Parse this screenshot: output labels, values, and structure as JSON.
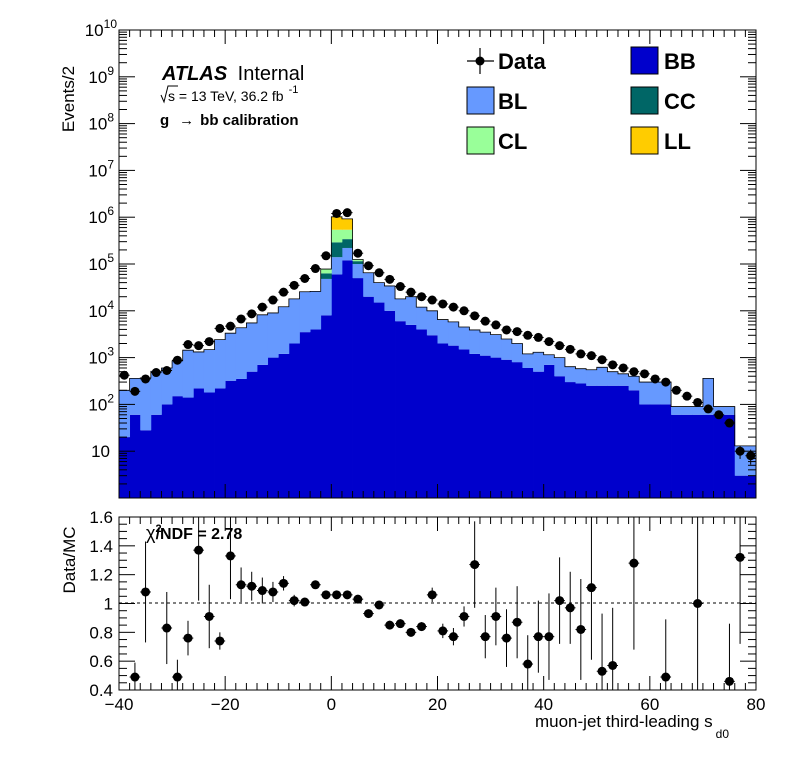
{
  "chart_data": [
    {
      "type": "stacked-histogram",
      "panel": "main",
      "ylabel": "Events/2",
      "yscale": "log",
      "ylim": [
        1,
        10000000000
      ],
      "xlim": [
        -40,
        80
      ],
      "bin_edges_start": -40,
      "bin_width": 2,
      "y_tick_labels": [
        "10",
        "10",
        "10",
        "10",
        "10",
        "10",
        "10",
        "10",
        "10",
        "10"
      ],
      "y_tick_exponents": [
        "",
        "2",
        "3",
        "4",
        "5",
        "6",
        "7",
        "8",
        "9",
        "10"
      ],
      "y_tick_values": [
        10,
        100,
        1000,
        10000,
        100000,
        1000000,
        10000000,
        100000000,
        1000000000,
        10000000000
      ],
      "legend_position": "top-right",
      "series": [
        {
          "name": "BB",
          "color": "#0000cc",
          "values": [
            20,
            60,
            28,
            60,
            100,
            150,
            140,
            220,
            180,
            220,
            320,
            350,
            500,
            700,
            1000,
            1200,
            2000,
            3500,
            4000,
            8000,
            60000,
            120000,
            50000,
            20000,
            15000,
            10000,
            6000,
            5000,
            4000,
            3000,
            2000,
            1800,
            1500,
            1200,
            1100,
            1000,
            900,
            800,
            600,
            500,
            700,
            400,
            300,
            280,
            250,
            250,
            250,
            250,
            200,
            100,
            100,
            100,
            60,
            60,
            60,
            60,
            60,
            60,
            3,
            3
          ]
        },
        {
          "name": "BL",
          "color": "#6699ff",
          "values": [
            180,
            300,
            340,
            450,
            500,
            700,
            1300,
            1100,
            1300,
            2200,
            3000,
            4000,
            5000,
            7500,
            8000,
            11000,
            16000,
            22000,
            22000,
            40000,
            80000,
            100000,
            50000,
            45000,
            25000,
            24000,
            12000,
            15000,
            8000,
            7000,
            4500,
            4000,
            3000,
            2700,
            2400,
            2100,
            1600,
            1200,
            600,
            800,
            450,
            600,
            340,
            300,
            300,
            370,
            250,
            200,
            200,
            200,
            200,
            200,
            30,
            30,
            30,
            300,
            30,
            30,
            10,
            10
          ]
        },
        {
          "name": "CC",
          "color": "#006666",
          "values": [
            0,
            0,
            0,
            0,
            0,
            0,
            0,
            0,
            0,
            0,
            0,
            0,
            0,
            0,
            0,
            0,
            0,
            0,
            0,
            15000,
            150000,
            120000,
            15000,
            0,
            0,
            0,
            0,
            0,
            0,
            0,
            0,
            0,
            0,
            0,
            0,
            0,
            0,
            0,
            0,
            0,
            0,
            0,
            0,
            0,
            0,
            0,
            0,
            0,
            0,
            0,
            0,
            0,
            0,
            0,
            0,
            0,
            0,
            0,
            0,
            0
          ]
        },
        {
          "name": "CL",
          "color": "#99ff99",
          "values": [
            0,
            0,
            0,
            0,
            0,
            0,
            0,
            0,
            0,
            0,
            0,
            0,
            0,
            0,
            0,
            0,
            0,
            0,
            0,
            15000,
            250000,
            200000,
            10000,
            0,
            0,
            0,
            0,
            0,
            0,
            0,
            0,
            0,
            0,
            0,
            0,
            0,
            0,
            0,
            0,
            0,
            0,
            0,
            0,
            0,
            0,
            0,
            0,
            0,
            0,
            0,
            0,
            0,
            0,
            0,
            0,
            0,
            0,
            0,
            0,
            0
          ]
        },
        {
          "name": "LL",
          "color": "#ffcc00",
          "values": [
            0,
            0,
            0,
            0,
            0,
            0,
            0,
            0,
            0,
            0,
            0,
            0,
            0,
            0,
            0,
            0,
            0,
            0,
            0,
            0,
            480000,
            380000,
            0,
            0,
            0,
            0,
            0,
            0,
            0,
            0,
            0,
            0,
            0,
            0,
            0,
            0,
            0,
            0,
            0,
            0,
            0,
            0,
            0,
            0,
            0,
            0,
            0,
            0,
            0,
            0,
            0,
            0,
            0,
            0,
            0,
            0,
            0,
            0,
            0,
            0
          ]
        }
      ],
      "data": {
        "name": "Data",
        "color": "#000000",
        "values": [
          420,
          190,
          350,
          480,
          530,
          880,
          1900,
          1800,
          2200,
          4200,
          4700,
          6700,
          8600,
          12000,
          17000,
          25000,
          35000,
          49000,
          80000,
          150000,
          1200000,
          1250000,
          170000,
          92000,
          65000,
          47000,
          33000,
          25000,
          20000,
          17000,
          14000,
          12000,
          10000,
          7800,
          6000,
          5000,
          3900,
          3600,
          3000,
          2700,
          2200,
          1800,
          1500,
          1200,
          1100,
          900,
          700,
          600,
          500,
          450,
          350,
          300,
          200,
          150,
          110,
          80,
          60,
          40,
          10,
          8
        ]
      },
      "annotations": {
        "atlas_label": "ATLAS",
        "atlas_suffix": "Internal",
        "sqrt_s": "s",
        "energy_text": " = 13 TeV, 36.2 fb",
        "lumi_exponent": "-1",
        "calibration_g": "g",
        "calibration_arrow": "→",
        "calibration_text": "bb calibration"
      },
      "legend_order": [
        "Data",
        "BB",
        "BL",
        "CC",
        "CL",
        "LL"
      ]
    },
    {
      "type": "scatter-errorbar",
      "panel": "ratio",
      "ylabel": "Data/MC",
      "xlabel": "muon-jet third-leading s",
      "xlabel_subscript": "d0",
      "xlim": [
        -40,
        80
      ],
      "ylim": [
        0.4,
        1.6
      ],
      "reference_line": 1,
      "x_ticks": [
        -40,
        -20,
        0,
        20,
        40,
        60,
        80
      ],
      "x_tick_labels": [
        "−40",
        "−20",
        "0",
        "20",
        "40",
        "60",
        "80"
      ],
      "y_ticks": [
        0.4,
        0.6,
        0.8,
        1,
        1.2,
        1.4,
        1.6
      ],
      "y_tick_labels": [
        "0.4",
        "0.6",
        "0.8",
        "1",
        "1.2",
        "1.4",
        "1.6"
      ],
      "chi2_symbol": "χ",
      "chi2_exponent": "2",
      "chi2_text": "/NDF = 2.78",
      "points": [
        {
          "x": -37,
          "y": 0.49,
          "err": 0.1
        },
        {
          "x": -35,
          "y": 1.08,
          "err": 0.35
        },
        {
          "x": -31,
          "y": 0.83,
          "err": 0.25
        },
        {
          "x": -29,
          "y": 0.49,
          "err": 0.12
        },
        {
          "x": -27,
          "y": 0.76,
          "err": 0.12
        },
        {
          "x": -25,
          "y": 1.37,
          "err": 0.35
        },
        {
          "x": -23,
          "y": 0.91,
          "err": 0.22
        },
        {
          "x": -21,
          "y": 0.74,
          "err": 0.06
        },
        {
          "x": -19,
          "y": 1.33,
          "err": 0.3
        },
        {
          "x": -17,
          "y": 1.13,
          "err": 0.12
        },
        {
          "x": -15,
          "y": 1.12,
          "err": 0.1
        },
        {
          "x": -13,
          "y": 1.09,
          "err": 0.09
        },
        {
          "x": -11,
          "y": 1.08,
          "err": 0.07
        },
        {
          "x": -9,
          "y": 1.14,
          "err": 0.05
        },
        {
          "x": -7,
          "y": 1.02,
          "err": 0.04
        },
        {
          "x": -5,
          "y": 1.01,
          "err": 0.02
        },
        {
          "x": -3,
          "y": 1.13,
          "err": 0.01
        },
        {
          "x": -1,
          "y": 1.06,
          "err": 0.01
        },
        {
          "x": 1,
          "y": 1.06,
          "err": 0.01
        },
        {
          "x": 3,
          "y": 1.06,
          "err": 0.01
        },
        {
          "x": 5,
          "y": 1.03,
          "err": 0.01
        },
        {
          "x": 7,
          "y": 0.93,
          "err": 0.02
        },
        {
          "x": 9,
          "y": 0.99,
          "err": 0.02
        },
        {
          "x": 11,
          "y": 0.85,
          "err": 0.03
        },
        {
          "x": 13,
          "y": 0.86,
          "err": 0.03
        },
        {
          "x": 15,
          "y": 0.8,
          "err": 0.03
        },
        {
          "x": 17,
          "y": 0.84,
          "err": 0.03
        },
        {
          "x": 19,
          "y": 1.06,
          "err": 0.05
        },
        {
          "x": 21,
          "y": 0.81,
          "err": 0.05
        },
        {
          "x": 23,
          "y": 0.77,
          "err": 0.06
        },
        {
          "x": 25,
          "y": 0.91,
          "err": 0.07
        },
        {
          "x": 27,
          "y": 1.27,
          "err": 0.3
        },
        {
          "x": 29,
          "y": 0.77,
          "err": 0.15
        },
        {
          "x": 31,
          "y": 0.91,
          "err": 0.2
        },
        {
          "x": 33,
          "y": 0.76,
          "err": 0.2
        },
        {
          "x": 35,
          "y": 0.87,
          "err": 0.25
        },
        {
          "x": 37,
          "y": 0.58,
          "err": 0.2
        },
        {
          "x": 39,
          "y": 0.77,
          "err": 0.25
        },
        {
          "x": 41,
          "y": 0.77,
          "err": 0.3
        },
        {
          "x": 43,
          "y": 1.02,
          "err": 0.3
        },
        {
          "x": 45,
          "y": 0.97,
          "err": 0.25
        },
        {
          "x": 47,
          "y": 0.82,
          "err": 0.35
        },
        {
          "x": 49,
          "y": 1.11,
          "err": 0.5
        },
        {
          "x": 51,
          "y": 0.53,
          "err": 0.4
        },
        {
          "x": 53,
          "y": 0.57,
          "err": 0.4
        },
        {
          "x": 57,
          "y": 1.28,
          "err": 0.6
        },
        {
          "x": 63,
          "y": 0.49,
          "err": 0.4
        },
        {
          "x": 69,
          "y": 1.0,
          "err": 0.6
        },
        {
          "x": 75,
          "y": 0.46,
          "err": 0.4
        },
        {
          "x": 77,
          "y": 1.32,
          "err": 0.6
        }
      ]
    }
  ]
}
